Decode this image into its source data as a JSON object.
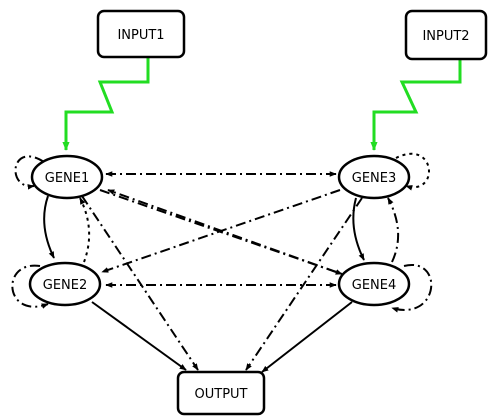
{
  "nodes": {
    "input1": "INPUT1",
    "input2": "INPUT2",
    "gene1": "GENE1",
    "gene2": "GENE2",
    "gene3": "GENE3",
    "gene4": "GENE4",
    "output": "OUTPUT"
  },
  "colors": {
    "signal_edge": "#22dd22",
    "edge": "#000000",
    "node_fill": "#ffffff"
  }
}
